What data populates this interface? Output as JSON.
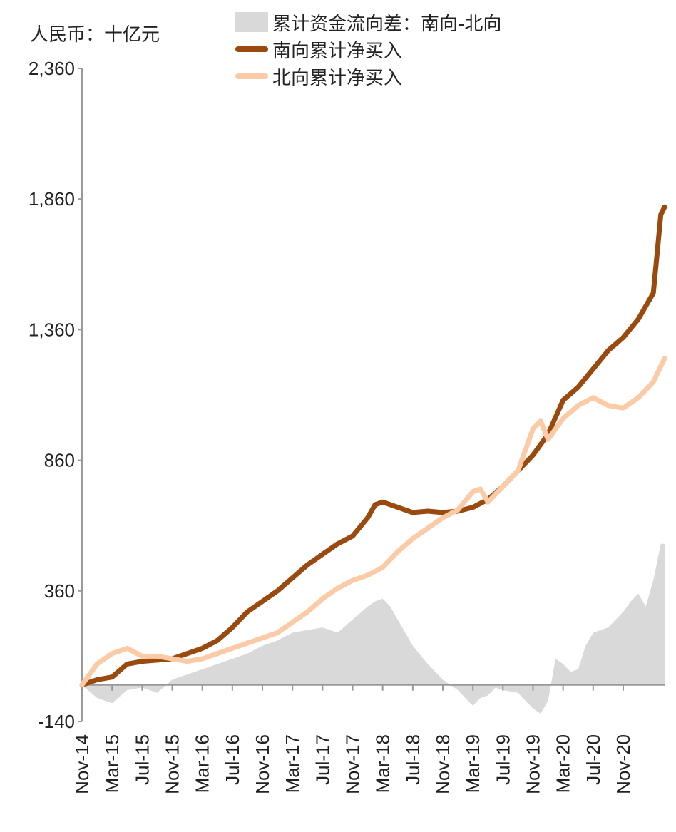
{
  "unit_label": "人民币：十亿元",
  "chart_data": {
    "type": "line",
    "title": "",
    "ylabel": "人民币：十亿元",
    "xlabel": "",
    "ylim": [
      -140,
      2360
    ],
    "yticks": [
      {
        "label": "2,360",
        "value": 2360,
        "color": "#222222"
      },
      {
        "label": "1,860",
        "value": 1860,
        "color": "#222222"
      },
      {
        "label": "1,360",
        "value": 1360,
        "color": "#222222"
      },
      {
        "label": "860",
        "value": 860,
        "color": "#222222"
      },
      {
        "label": "360",
        "value": 360,
        "color": "#222222"
      },
      {
        "label": "-140",
        "value": -140,
        "color": "#e00000"
      }
    ],
    "xlim": [
      0,
      77.5
    ],
    "x_unit": "months since Nov-14",
    "xticks": [
      {
        "label": "Nov-14",
        "x": 0
      },
      {
        "label": "Mar-15",
        "x": 4
      },
      {
        "label": "Jul-15",
        "x": 8
      },
      {
        "label": "Nov-15",
        "x": 12
      },
      {
        "label": "Mar-16",
        "x": 16
      },
      {
        "label": "Jul-16",
        "x": 20
      },
      {
        "label": "Nov-16",
        "x": 24
      },
      {
        "label": "Mar-17",
        "x": 28
      },
      {
        "label": "Jul-17",
        "x": 32
      },
      {
        "label": "Nov-17",
        "x": 36
      },
      {
        "label": "Mar-18",
        "x": 40
      },
      {
        "label": "Jul-18",
        "x": 44
      },
      {
        "label": "Nov-18",
        "x": 48
      },
      {
        "label": "Mar-19",
        "x": 52
      },
      {
        "label": "Jul-19",
        "x": 56
      },
      {
        "label": "Nov-19",
        "x": 60
      },
      {
        "label": "Mar-20",
        "x": 64
      },
      {
        "label": "Jul-20",
        "x": 68
      },
      {
        "label": "Nov-20",
        "x": 72
      }
    ],
    "series": [
      {
        "name": "累计资金流向差：南向-北向",
        "kind": "area",
        "color": "#d9d9d9",
        "x": [
          0,
          2,
          4,
          6,
          8,
          10,
          12,
          14,
          16,
          18,
          20,
          22,
          24,
          26,
          28,
          30,
          32,
          34,
          36,
          38,
          39,
          40,
          41,
          42,
          44,
          46,
          48,
          50,
          52,
          53,
          54,
          55,
          56,
          58,
          60,
          61,
          62,
          63,
          64,
          65,
          66,
          67,
          68,
          70,
          72,
          73,
          74,
          75,
          76,
          77,
          77.5
        ],
        "values": [
          0,
          -50,
          -70,
          -20,
          -10,
          -30,
          20,
          40,
          60,
          80,
          100,
          120,
          150,
          170,
          200,
          210,
          220,
          200,
          250,
          300,
          320,
          330,
          300,
          250,
          150,
          80,
          20,
          -20,
          -80,
          -50,
          -40,
          -10,
          -20,
          -30,
          -90,
          -110,
          -60,
          100,
          80,
          50,
          60,
          150,
          200,
          220,
          280,
          320,
          350,
          300,
          400,
          540,
          540
        ]
      },
      {
        "name": "南向累计净买入",
        "kind": "line",
        "color": "#9a4a0f",
        "x": [
          0,
          2,
          4,
          6,
          8,
          10,
          12,
          14,
          16,
          18,
          20,
          22,
          24,
          26,
          28,
          30,
          32,
          34,
          36,
          38,
          39,
          40,
          42,
          44,
          46,
          48,
          50,
          52,
          54,
          56,
          58,
          60,
          62,
          64,
          66,
          68,
          70,
          72,
          74,
          75,
          76,
          77,
          77.5
        ],
        "values": [
          0,
          20,
          30,
          80,
          90,
          95,
          100,
          120,
          140,
          170,
          220,
          280,
          320,
          360,
          410,
          460,
          500,
          540,
          570,
          640,
          690,
          700,
          680,
          660,
          665,
          660,
          665,
          680,
          710,
          760,
          820,
          880,
          960,
          1090,
          1140,
          1210,
          1280,
          1330,
          1400,
          1450,
          1500,
          1800,
          1830
        ]
      },
      {
        "name": "北向累计净买入",
        "kind": "line",
        "color": "#fbcba8",
        "x": [
          0,
          2,
          4,
          6,
          8,
          10,
          12,
          14,
          16,
          18,
          20,
          22,
          24,
          26,
          28,
          30,
          32,
          34,
          36,
          38,
          40,
          42,
          44,
          46,
          48,
          50,
          52,
          53,
          54,
          56,
          58,
          60,
          61,
          62,
          64,
          66,
          68,
          70,
          72,
          74,
          76,
          77.5
        ],
        "values": [
          0,
          80,
          120,
          140,
          110,
          110,
          100,
          90,
          100,
          120,
          140,
          160,
          180,
          200,
          240,
          280,
          330,
          370,
          400,
          420,
          450,
          510,
          560,
          600,
          640,
          670,
          740,
          750,
          700,
          760,
          820,
          980,
          1010,
          940,
          1020,
          1070,
          1100,
          1070,
          1060,
          1100,
          1160,
          1250
        ]
      }
    ],
    "legend": {
      "placement": "top-center"
    }
  },
  "legend_items": [
    {
      "label": "累计资金流向差：南向-北向",
      "color": "#d9d9d9"
    },
    {
      "label": "南向累计净买入",
      "color": "#9a4a0f"
    },
    {
      "label": "北向累计净买入",
      "color": "#fbcba8"
    }
  ]
}
